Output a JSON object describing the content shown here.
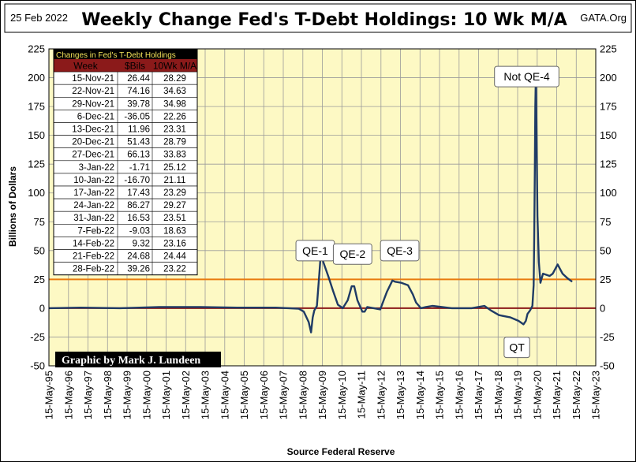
{
  "header": {
    "date": "25 Feb 2022",
    "title": "Weekly Change Fed's T-Debt Holdings: 10 Wk M/A",
    "source_org": "GATA.Org"
  },
  "credit": "Graphic by Mark J. Lundeen",
  "chart_data": {
    "type": "line",
    "title": "Weekly Change Fed's T-Debt Holdings: 10 Wk M/A",
    "ylabel": "Billions  of  Dollars",
    "xlabel": "Source Federal Reserve",
    "ylim": [
      -50,
      225
    ],
    "yticks": [
      225,
      200,
      175,
      150,
      125,
      100,
      75,
      50,
      25,
      0,
      -25,
      -50
    ],
    "x_range": [
      "15-May-95",
      "15-May-23"
    ],
    "x_tick_labels": [
      "15-May-95",
      "15-May-96",
      "15-May-97",
      "15-May-98",
      "15-May-99",
      "15-May-00",
      "15-May-01",
      "15-May-02",
      "15-May-03",
      "15-May-04",
      "15-May-05",
      "15-May-06",
      "15-May-07",
      "15-May-08",
      "15-May-09",
      "15-May-10",
      "15-May-11",
      "15-May-12",
      "15-May-13",
      "15-May-14",
      "15-May-15",
      "15-May-16",
      "15-May-17",
      "15-May-18",
      "15-May-19",
      "15-May-20",
      "15-May-21",
      "15-May-22",
      "15-May-23"
    ],
    "grid": true,
    "background": "#fdf9c4",
    "series": [
      {
        "color": "#1f3b66",
        "x": [
          "1995-05-15",
          "1997-01-01",
          "1999-01-01",
          "2001-01-01",
          "2003-01-01",
          "2005-01-01",
          "2007-01-01",
          "2008-03-01",
          "2008-06-01",
          "2008-09-01",
          "2008-10-15",
          "2008-11-15",
          "2008-12-15",
          "2009-02-01",
          "2009-03-20",
          "2009-04-20",
          "2009-06-01",
          "2009-09-01",
          "2009-12-01",
          "2010-03-01",
          "2010-06-01",
          "2010-09-01",
          "2010-11-15",
          "2011-01-01",
          "2011-03-01",
          "2011-06-01",
          "2011-07-15",
          "2011-09-01",
          "2012-01-01",
          "2012-05-01",
          "2012-09-01",
          "2012-12-15",
          "2013-02-01",
          "2013-06-01",
          "2013-10-01",
          "2014-01-01",
          "2014-03-01",
          "2014-06-01",
          "2014-09-01",
          "2015-01-01",
          "2016-01-01",
          "2017-01-01",
          "2017-09-01",
          "2018-01-01",
          "2018-06-01",
          "2019-01-01",
          "2019-06-01",
          "2019-09-01",
          "2019-10-15",
          "2019-11-15",
          "2020-01-01",
          "2020-02-15",
          "2020-03-10",
          "2020-03-20",
          "2020-04-01",
          "2020-04-10",
          "2020-04-20",
          "2020-05-01",
          "2020-05-20",
          "2020-06-15",
          "2020-07-15",
          "2020-09-01",
          "2021-01-01",
          "2021-03-01",
          "2021-06-01",
          "2021-09-01",
          "2021-12-01",
          "2022-02-28"
        ],
        "values": [
          0,
          0.5,
          0,
          1,
          1,
          0.5,
          0.5,
          -0.5,
          -3,
          -12,
          -21,
          -8,
          -2,
          2,
          30,
          50,
          40,
          28,
          15,
          3,
          0,
          7,
          19,
          19,
          7,
          -3,
          -3,
          1,
          0,
          -1,
          14,
          24,
          23,
          22,
          20,
          12,
          5,
          0,
          1,
          2,
          0,
          0,
          2,
          -2,
          -6,
          -8,
          -11,
          -14,
          -11,
          -5,
          -2,
          2,
          20,
          60,
          120,
          175,
          202,
          160,
          80,
          40,
          22,
          30,
          28,
          30,
          38,
          30,
          26,
          23
        ]
      }
    ],
    "reference_lines": [
      {
        "y": 25,
        "color": "#e87b0e"
      },
      {
        "y": 0,
        "color": "#8b1a1a"
      }
    ],
    "annotations": [
      {
        "text": "QE-1",
        "x": "2009-01-01",
        "y": 50
      },
      {
        "text": "QE-2",
        "x": "2010-12-01",
        "y": 47
      },
      {
        "text": "QE-3",
        "x": "2013-05-01",
        "y": 50
      },
      {
        "text": "Not QE-4",
        "x": "2019-11-01",
        "y": 201
      },
      {
        "text": "QT",
        "x": "2019-05-01",
        "y": -34
      }
    ],
    "table": {
      "caption": "Changes in Fed's T-Debt Holdings",
      "headers": [
        "Week",
        "$Bils",
        "10Wk M/A"
      ],
      "rows": [
        [
          "15-Nov-21",
          "26.44",
          "28.29"
        ],
        [
          "22-Nov-21",
          "74.16",
          "34.63"
        ],
        [
          "29-Nov-21",
          "39.78",
          "34.98"
        ],
        [
          "6-Dec-21",
          "-36.05",
          "22.26"
        ],
        [
          "13-Dec-21",
          "11.96",
          "23.31"
        ],
        [
          "20-Dec-21",
          "51.43",
          "28.79"
        ],
        [
          "27-Dec-21",
          "66.13",
          "33.83"
        ],
        [
          "3-Jan-22",
          "-1.71",
          "25.12"
        ],
        [
          "10-Jan-22",
          "-16.70",
          "21.11"
        ],
        [
          "17-Jan-22",
          "17.43",
          "23.29"
        ],
        [
          "24-Jan-22",
          "86.27",
          "29.27"
        ],
        [
          "31-Jan-22",
          "16.53",
          "23.51"
        ],
        [
          "7-Feb-22",
          "-9.03",
          "18.63"
        ],
        [
          "14-Feb-22",
          "9.32",
          "23.16"
        ],
        [
          "21-Feb-22",
          "24.68",
          "24.44"
        ],
        [
          "28-Feb-22",
          "39.26",
          "23.22"
        ]
      ]
    }
  }
}
